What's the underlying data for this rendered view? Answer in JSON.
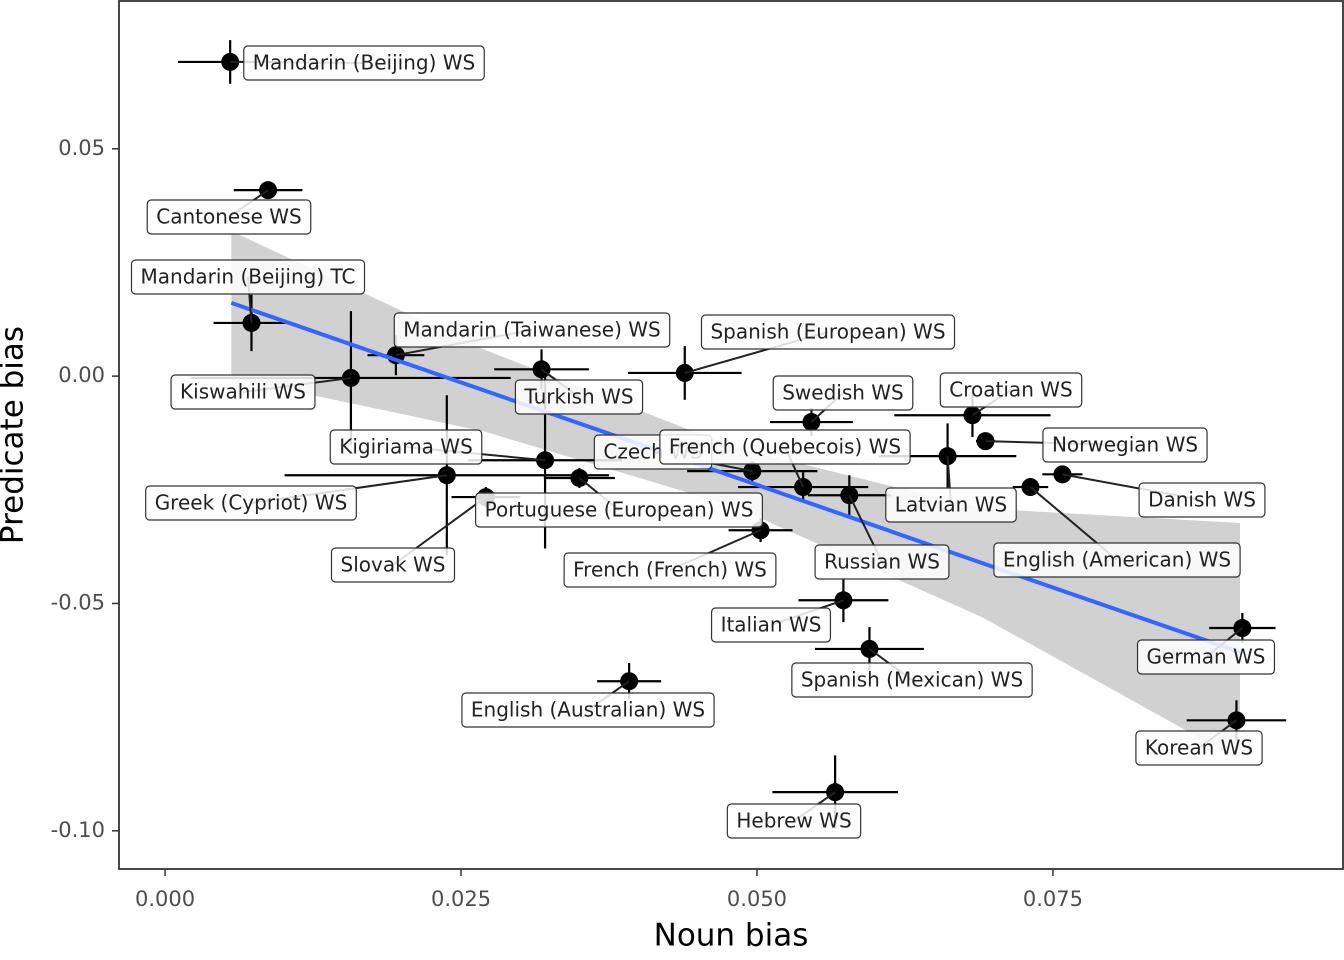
{
  "chart_data": {
    "type": "scatter",
    "xlabel": "Noun bias",
    "ylabel": "Predicate bias",
    "xlim": [
      -0.00389,
      0.0995
    ],
    "ylim": [
      -0.1084,
      0.0825
    ],
    "xticks": [
      {
        "value": 0,
        "label": "0.000"
      },
      {
        "value": 0.025,
        "label": "0.025"
      },
      {
        "value": 0.05,
        "label": "0.050"
      },
      {
        "value": 0.075,
        "label": "0.075"
      }
    ],
    "yticks": [
      {
        "value": -0.1,
        "label": "-0.10"
      },
      -0.05,
      {
        "value": 0,
        "label": "0.00"
      },
      0.05
    ],
    "grid": false,
    "series": [
      {
        "color": "#000000",
        "labels": [
          "Mandarin (Beijing) WS",
          "Cantonese WS",
          "Mandarin (Beijing) TC",
          "Mandarin (Taiwanese) WS",
          "Kiswahili WS",
          "Turkish WS",
          "Spanish (European) WS",
          "Swedish WS",
          "Croatian WS",
          "Norwegian WS",
          "Latvian WS",
          "Danish WS",
          "English (American) WS",
          "Czech WS",
          "French (Quebecois) WS",
          "Russian WS",
          "Kigiriama WS",
          "Greek (Cypriot) WS",
          "Slovak WS",
          "Portuguese (European) WS",
          "French (French) WS",
          "Italian WS",
          "Spanish (Mexican) WS",
          "English (Australian) WS",
          "Hebrew WS",
          "German WS",
          "Korean WS"
        ],
        "x": [
          0.0055,
          0.0087,
          0.0073,
          0.0195,
          0.0157,
          0.0318,
          0.0439,
          0.0546,
          0.0682,
          0.0693,
          0.0661,
          0.0758,
          0.0731,
          0.0496,
          0.0539,
          0.0578,
          0.0321,
          0.0238,
          0.0271,
          0.035,
          0.0503,
          0.0573,
          0.0595,
          0.0392,
          0.0566,
          0.091,
          0.0905
        ],
        "values": [
          0.0691,
          0.0409,
          0.0117,
          0.0046,
          -0.0004,
          0.0015,
          0.0007,
          -0.0101,
          -0.0086,
          -0.0143,
          -0.0176,
          -0.0216,
          -0.0244,
          -0.0209,
          -0.0244,
          -0.0262,
          -0.0185,
          -0.0218,
          -0.0266,
          -0.0224,
          -0.0339,
          -0.0493,
          -0.06,
          -0.0671,
          -0.0915,
          -0.0554,
          -0.0757
        ],
        "xerr": [
          0.0044,
          0.0029,
          0.0032,
          0.0024,
          0.0135,
          0.004,
          0.0048,
          0.0035,
          0.0066,
          0.0008,
          0.0058,
          0.0017,
          0.0015,
          0.0055,
          0.0055,
          0.0035,
          0.0065,
          0.0137,
          0.0029,
          0.003,
          0.0027,
          0.0038,
          0.0046,
          0.0027,
          0.0053,
          0.0028,
          0.0042
        ],
        "yerr": [
          0.0048,
          0.0018,
          0.0062,
          0.0044,
          0.0147,
          0.0044,
          0.0059,
          0.0031,
          0.0048,
          0.0018,
          0.0072,
          0.0013,
          0.0013,
          0.0022,
          0.0033,
          0.0044,
          0.0194,
          0.0176,
          0.0022,
          0.0022,
          0.0026,
          0.0048,
          0.0048,
          0.004,
          0.0081,
          0.0033,
          0.0044
        ]
      }
    ],
    "fit": {
      "color": "#3366ff",
      "band_color": "#cccccc",
      "x": [
        0.0056,
        0.027,
        0.048,
        0.069,
        0.0908
      ],
      "values": [
        0.0161,
        -0.0032,
        -0.0221,
        -0.0411,
        -0.0607
      ],
      "lower": [
        -0.0004,
        -0.0122,
        -0.0286,
        -0.053,
        -0.0845
      ],
      "upper": [
        0.0319,
        0.0058,
        -0.0156,
        -0.0291,
        -0.0323
      ]
    }
  }
}
